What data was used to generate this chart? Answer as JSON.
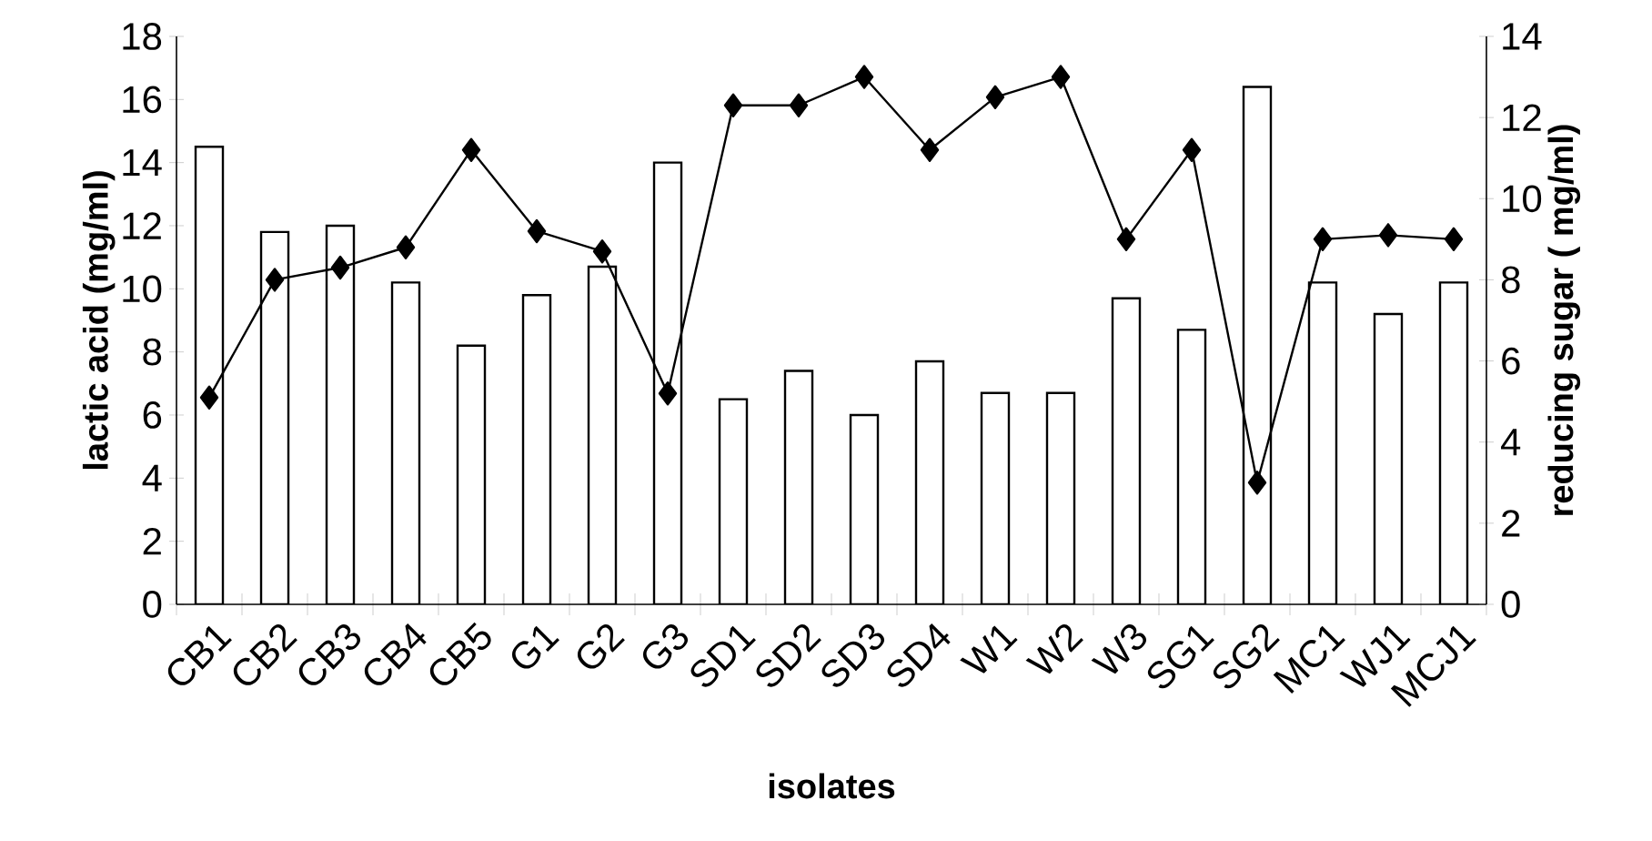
{
  "chart_data": {
    "type": "bar",
    "xlabel": "isolates",
    "ylabel": "lactic acid (mg/ml)",
    "y2label": "reducing sugar ( mg/ml)",
    "categories": [
      "CB1",
      "CB2",
      "CB3",
      "CB4",
      "CB5",
      "G1",
      "G2",
      "G3",
      "SD1",
      "SD2",
      "SD3",
      "SD4",
      "W1",
      "W2",
      "W3",
      "SG1",
      "SG2",
      "MC1",
      "WJ1",
      "MCJ1"
    ],
    "ylim": [
      0,
      18
    ],
    "yticks": [
      0,
      2,
      4,
      6,
      8,
      10,
      12,
      14,
      16,
      18
    ],
    "y2lim": [
      0,
      14
    ],
    "y2ticks": [
      0,
      2,
      4,
      6,
      8,
      10,
      12,
      14
    ],
    "series": [
      {
        "color": "#ffffff",
        "values": [
          14.5,
          11.8,
          12.0,
          10.2,
          8.2,
          9.8,
          10.7,
          14.0,
          6.5,
          7.4,
          6.0,
          7.7,
          6.7,
          6.7,
          9.7,
          8.7,
          16.4,
          10.2,
          9.2,
          10.2
        ]
      },
      {
        "type": "line",
        "axis": "y2",
        "color": "#000000",
        "marker": "diamond",
        "values": [
          5.1,
          8.0,
          8.3,
          8.8,
          11.2,
          9.2,
          8.7,
          5.2,
          12.3,
          12.3,
          13.0,
          11.2,
          12.5,
          13.0,
          9.0,
          11.2,
          3.0,
          9.0,
          9.1,
          9.0
        ]
      }
    ]
  }
}
